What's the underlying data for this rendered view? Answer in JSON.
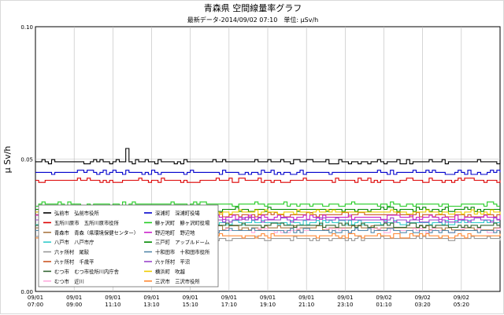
{
  "chart_data": {
    "type": "line",
    "title": "青森県 空間線量率グラフ",
    "subtitle": "最新データ-2014/09/02 07:10　単位: μSv/h",
    "ylabel": "μ Sv/h",
    "xlabel": "",
    "ylim": [
      0.0,
      0.1
    ],
    "yticks": [
      "0.00",
      "0.05",
      "0.10"
    ],
    "xticks": [
      {
        "date": "09/01",
        "time": "07:00"
      },
      {
        "date": "09/01",
        "time": "09:00"
      },
      {
        "date": "09/01",
        "time": "11:10"
      },
      {
        "date": "09/01",
        "time": "13:10"
      },
      {
        "date": "09/01",
        "time": "15:10"
      },
      {
        "date": "09/01",
        "time": "17:10"
      },
      {
        "date": "09/01",
        "time": "19:10"
      },
      {
        "date": "09/01",
        "time": "21:10"
      },
      {
        "date": "09/01",
        "time": "23:10"
      },
      {
        "date": "09/02",
        "time": "01:10"
      },
      {
        "date": "09/02",
        "time": "03:20"
      },
      {
        "date": "09/02",
        "time": "05:20"
      }
    ],
    "grid": true,
    "legend_position": "bottom-left",
    "series": [
      {
        "name": "弘前市　弘前市役所",
        "color": "#000000",
        "base": 0.049,
        "spike": 0.054
      },
      {
        "name": "五所川原市　五所川原市役所",
        "color": "#dd0000",
        "base": 0.042
      },
      {
        "name": "青森市　青森（県環境保健センター）",
        "color": "#aa7744",
        "base": 0.024
      },
      {
        "name": "八戸市　八戸市庁",
        "color": "#33cccc",
        "base": 0.026
      },
      {
        "name": "六ヶ所村　尾駮",
        "color": "#999999",
        "base": 0.02
      },
      {
        "name": "六ヶ所村　千歳平",
        "color": "#cc5522",
        "base": 0.029
      },
      {
        "name": "むつ市　むつ市役所川内庁舎",
        "color": "#336633",
        "base": 0.025
      },
      {
        "name": "むつ市　近川",
        "color": "#ffaadd",
        "base": 0.023
      },
      {
        "name": "深浦町　深浦町役場",
        "color": "#0000cc",
        "base": 0.045
      },
      {
        "name": "鰺ヶ沢町　鰺ヶ沢町役場",
        "color": "#22cc22",
        "base": 0.033
      },
      {
        "name": "野辺地町　野辺地",
        "color": "#cc22cc",
        "base": 0.028
      },
      {
        "name": "三戸町　アップルドーム",
        "color": "#008800",
        "base": 0.031
      },
      {
        "name": "十和田市　十和田市役所",
        "color": "#5588aa",
        "base": 0.023
      },
      {
        "name": "六ヶ所村　平沼",
        "color": "#9944cc",
        "base": 0.027
      },
      {
        "name": "横浜町　吹越",
        "color": "#eecc00",
        "base": 0.03
      },
      {
        "name": "三沢市　三沢市役所",
        "color": "#ff8833",
        "base": 0.021
      }
    ]
  }
}
